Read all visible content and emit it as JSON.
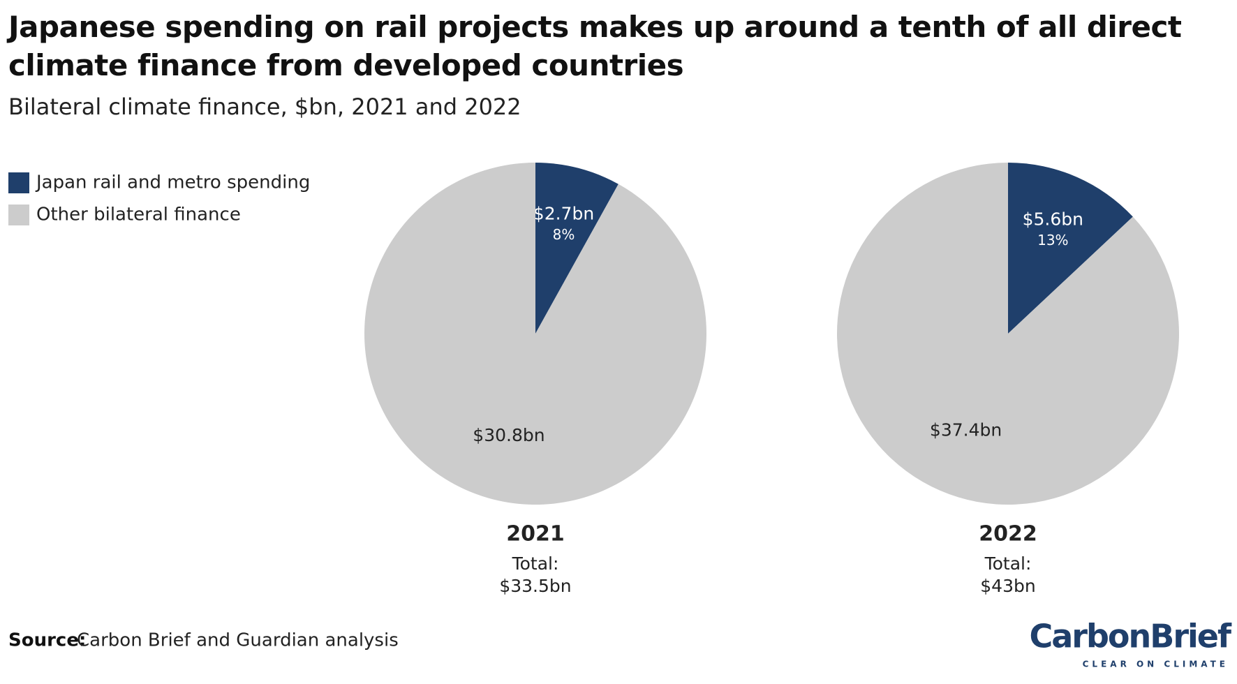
{
  "title": "Japanese spending on rail projects makes up around a tenth of all direct climate finance from developed countries",
  "subtitle": "Bilateral climate finance, $bn, 2021 and 2022",
  "source_label": "Source:",
  "source": "Carbon Brief and Guardian analysis",
  "logo": {
    "name": "CarbonBrief",
    "tagline": "CLEAR ON CLIMATE"
  },
  "chart_data": [
    {
      "type": "pie",
      "title": "2021",
      "total_label": "Total:",
      "total": 33.5,
      "total_value_label": "$33.5bn",
      "categories": [
        "Japan rail and metro spending",
        "Other bilateral finance"
      ],
      "colors": [
        "#1f3f6b",
        "#cccccc"
      ],
      "values": [
        2.7,
        30.8
      ],
      "value_labels": [
        "$2.7bn",
        "$30.8bn"
      ],
      "shares": [
        8,
        null
      ],
      "share_labels": [
        "8%",
        null
      ]
    },
    {
      "type": "pie",
      "title": "2022",
      "total_label": "Total:",
      "total": 43,
      "total_value_label": "$43bn",
      "categories": [
        "Japan rail and metro spending",
        "Other bilateral finance"
      ],
      "colors": [
        "#1f3f6b",
        "#cccccc"
      ],
      "values": [
        5.6,
        37.4
      ],
      "value_labels": [
        "$5.6bn",
        "$37.4bn"
      ],
      "shares": [
        13,
        null
      ],
      "share_labels": [
        "13%",
        null
      ]
    }
  ]
}
